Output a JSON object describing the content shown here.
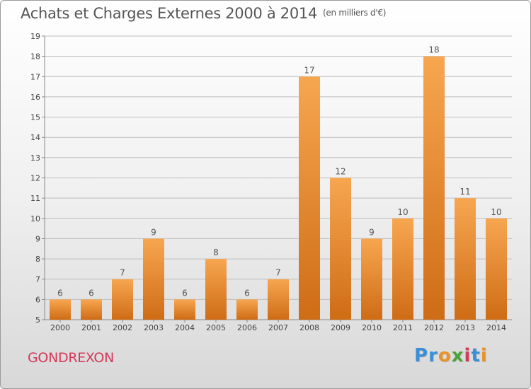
{
  "title": "Achats et Charges Externes 2000 à 2014",
  "unit": "(en milliers d'€)",
  "location": "GONDREXON",
  "logo": {
    "text": "Proxiti",
    "letters": [
      {
        "ch": "P",
        "color": "#3a8fd6"
      },
      {
        "ch": "r",
        "color": "#3a8fd6"
      },
      {
        "ch": "o",
        "color": "#e8932a"
      },
      {
        "ch": "x",
        "color": "#4aa33a"
      },
      {
        "ch": "i",
        "color": "#d23a5a"
      },
      {
        "ch": "t",
        "color": "#3a8fd6"
      },
      {
        "ch": "i",
        "color": "#e8932a"
      }
    ]
  },
  "colors": {
    "bar_light": "#f7a650",
    "bar_dark": "#cf6c16",
    "grid": "#bdbdbd",
    "axis_text": "#444444",
    "label_text": "#555555"
  },
  "chart_data": {
    "type": "bar",
    "title": "Achats et Charges Externes 2000 à 2014",
    "subtitle": "(en milliers d'€)",
    "xlabel": "",
    "ylabel": "",
    "categories": [
      "2000",
      "2001",
      "2002",
      "2003",
      "2004",
      "2005",
      "2006",
      "2007",
      "2008",
      "2009",
      "2010",
      "2011",
      "2012",
      "2013",
      "2014"
    ],
    "values": [
      6,
      6,
      7,
      9,
      6,
      8,
      6,
      7,
      17,
      12,
      9,
      10,
      18,
      11,
      10
    ],
    "ylim": [
      5,
      19
    ],
    "yticks": [
      5,
      6,
      7,
      8,
      9,
      10,
      11,
      12,
      13,
      14,
      15,
      16,
      17,
      18,
      19
    ],
    "grid": true,
    "data_labels": true
  }
}
